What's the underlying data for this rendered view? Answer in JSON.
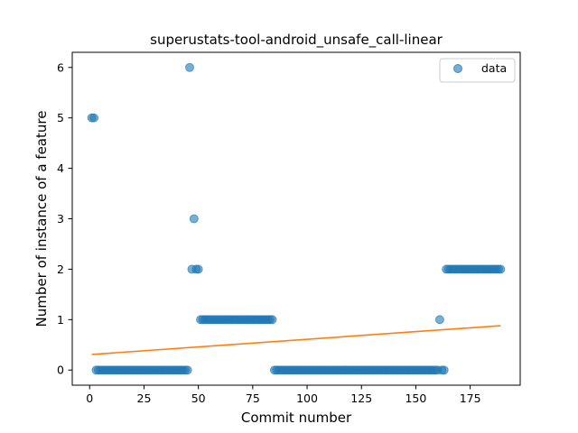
{
  "chart_data": {
    "type": "scatter",
    "title": "superustats-tool-android_unsafe_call-linear",
    "xlabel": "Commit number",
    "ylabel": "Number of instance of a feature",
    "xlim": [
      -8,
      198
    ],
    "ylim": [
      -0.3,
      6.3
    ],
    "xticks": [
      0,
      25,
      50,
      75,
      100,
      125,
      150,
      175
    ],
    "yticks": [
      0,
      1,
      2,
      3,
      4,
      5,
      6
    ],
    "grid": false,
    "legend": {
      "position": "top-right"
    },
    "series": [
      {
        "name": "data",
        "kind": "scatter",
        "color": "#1f77b4",
        "points": [
          [
            1,
            5
          ],
          [
            2,
            5
          ],
          [
            3,
            0
          ],
          [
            4,
            0
          ],
          [
            5,
            0
          ],
          [
            6,
            0
          ],
          [
            7,
            0
          ],
          [
            8,
            0
          ],
          [
            9,
            0
          ],
          [
            10,
            0
          ],
          [
            11,
            0
          ],
          [
            12,
            0
          ],
          [
            13,
            0
          ],
          [
            14,
            0
          ],
          [
            15,
            0
          ],
          [
            16,
            0
          ],
          [
            17,
            0
          ],
          [
            18,
            0
          ],
          [
            19,
            0
          ],
          [
            20,
            0
          ],
          [
            21,
            0
          ],
          [
            22,
            0
          ],
          [
            23,
            0
          ],
          [
            24,
            0
          ],
          [
            25,
            0
          ],
          [
            26,
            0
          ],
          [
            27,
            0
          ],
          [
            28,
            0
          ],
          [
            29,
            0
          ],
          [
            30,
            0
          ],
          [
            31,
            0
          ],
          [
            32,
            0
          ],
          [
            33,
            0
          ],
          [
            34,
            0
          ],
          [
            35,
            0
          ],
          [
            36,
            0
          ],
          [
            37,
            0
          ],
          [
            38,
            0
          ],
          [
            39,
            0
          ],
          [
            40,
            0
          ],
          [
            41,
            0
          ],
          [
            42,
            0
          ],
          [
            43,
            0
          ],
          [
            44,
            0
          ],
          [
            45,
            0
          ],
          [
            46,
            6
          ],
          [
            47,
            2
          ],
          [
            48,
            3
          ],
          [
            49,
            2
          ],
          [
            50,
            2
          ],
          [
            51,
            1
          ],
          [
            52,
            1
          ],
          [
            53,
            1
          ],
          [
            54,
            1
          ],
          [
            55,
            1
          ],
          [
            56,
            1
          ],
          [
            57,
            1
          ],
          [
            58,
            1
          ],
          [
            59,
            1
          ],
          [
            60,
            1
          ],
          [
            61,
            1
          ],
          [
            62,
            1
          ],
          [
            63,
            1
          ],
          [
            64,
            1
          ],
          [
            65,
            1
          ],
          [
            66,
            1
          ],
          [
            67,
            1
          ],
          [
            68,
            1
          ],
          [
            69,
            1
          ],
          [
            70,
            1
          ],
          [
            71,
            1
          ],
          [
            72,
            1
          ],
          [
            73,
            1
          ],
          [
            74,
            1
          ],
          [
            75,
            1
          ],
          [
            76,
            1
          ],
          [
            77,
            1
          ],
          [
            78,
            1
          ],
          [
            79,
            1
          ],
          [
            80,
            1
          ],
          [
            81,
            1
          ],
          [
            82,
            1
          ],
          [
            83,
            1
          ],
          [
            84,
            1
          ],
          [
            85,
            0
          ],
          [
            86,
            0
          ],
          [
            87,
            0
          ],
          [
            88,
            0
          ],
          [
            89,
            0
          ],
          [
            90,
            0
          ],
          [
            91,
            0
          ],
          [
            92,
            0
          ],
          [
            93,
            0
          ],
          [
            94,
            0
          ],
          [
            95,
            0
          ],
          [
            96,
            0
          ],
          [
            97,
            0
          ],
          [
            98,
            0
          ],
          [
            99,
            0
          ],
          [
            100,
            0
          ],
          [
            101,
            0
          ],
          [
            102,
            0
          ],
          [
            103,
            0
          ],
          [
            104,
            0
          ],
          [
            105,
            0
          ],
          [
            106,
            0
          ],
          [
            107,
            0
          ],
          [
            108,
            0
          ],
          [
            109,
            0
          ],
          [
            110,
            0
          ],
          [
            111,
            0
          ],
          [
            112,
            0
          ],
          [
            113,
            0
          ],
          [
            114,
            0
          ],
          [
            115,
            0
          ],
          [
            116,
            0
          ],
          [
            117,
            0
          ],
          [
            118,
            0
          ],
          [
            119,
            0
          ],
          [
            120,
            0
          ],
          [
            121,
            0
          ],
          [
            122,
            0
          ],
          [
            123,
            0
          ],
          [
            124,
            0
          ],
          [
            125,
            0
          ],
          [
            126,
            0
          ],
          [
            127,
            0
          ],
          [
            128,
            0
          ],
          [
            129,
            0
          ],
          [
            130,
            0
          ],
          [
            131,
            0
          ],
          [
            132,
            0
          ],
          [
            133,
            0
          ],
          [
            134,
            0
          ],
          [
            135,
            0
          ],
          [
            136,
            0
          ],
          [
            137,
            0
          ],
          [
            138,
            0
          ],
          [
            139,
            0
          ],
          [
            140,
            0
          ],
          [
            141,
            0
          ],
          [
            142,
            0
          ],
          [
            143,
            0
          ],
          [
            144,
            0
          ],
          [
            145,
            0
          ],
          [
            146,
            0
          ],
          [
            147,
            0
          ],
          [
            148,
            0
          ],
          [
            149,
            0
          ],
          [
            150,
            0
          ],
          [
            151,
            0
          ],
          [
            152,
            0
          ],
          [
            153,
            0
          ],
          [
            154,
            0
          ],
          [
            155,
            0
          ],
          [
            156,
            0
          ],
          [
            157,
            0
          ],
          [
            158,
            0
          ],
          [
            159,
            0
          ],
          [
            160,
            0
          ],
          [
            161,
            1
          ],
          [
            162,
            0
          ],
          [
            163,
            0
          ],
          [
            164,
            2
          ],
          [
            165,
            2
          ],
          [
            166,
            2
          ],
          [
            167,
            2
          ],
          [
            168,
            2
          ],
          [
            169,
            2
          ],
          [
            170,
            2
          ],
          [
            171,
            2
          ],
          [
            172,
            2
          ],
          [
            173,
            2
          ],
          [
            174,
            2
          ],
          [
            175,
            2
          ],
          [
            176,
            2
          ],
          [
            177,
            2
          ],
          [
            178,
            2
          ],
          [
            179,
            2
          ],
          [
            180,
            2
          ],
          [
            181,
            2
          ],
          [
            182,
            2
          ],
          [
            183,
            2
          ],
          [
            184,
            2
          ],
          [
            185,
            2
          ],
          [
            186,
            2
          ],
          [
            187,
            2
          ],
          [
            188,
            2
          ],
          [
            189,
            2
          ]
        ]
      },
      {
        "name": "",
        "kind": "line",
        "color": "#ff7f0e",
        "points": [
          [
            1,
            0.31
          ],
          [
            189,
            0.88
          ]
        ]
      }
    ]
  }
}
